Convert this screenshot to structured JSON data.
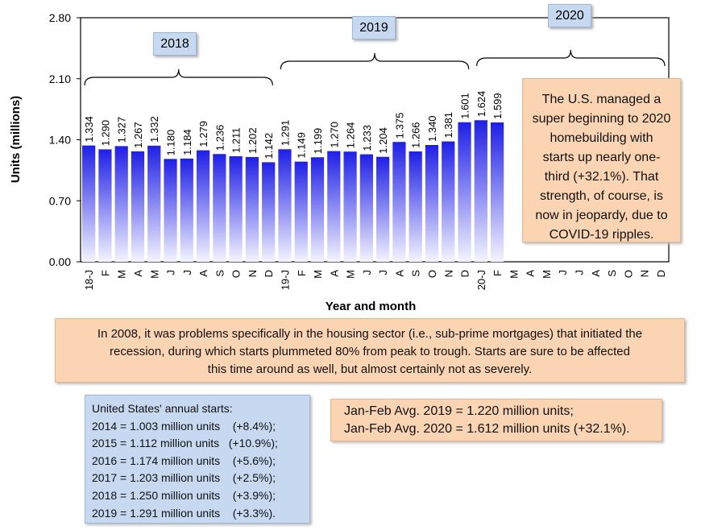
{
  "chart_data": {
    "type": "bar",
    "ylabel": "Units (millions)",
    "xlabel": "Year and month",
    "categories": [
      "18-J",
      "F",
      "M",
      "A",
      "M",
      "J",
      "J",
      "A",
      "S",
      "O",
      "N",
      "D",
      "19-J",
      "F",
      "M",
      "A",
      "M",
      "J",
      "J",
      "A",
      "S",
      "O",
      "N",
      "D",
      "20-J",
      "F",
      "M",
      "A",
      "M",
      "J",
      "J",
      "A",
      "S",
      "O",
      "N",
      "D"
    ],
    "values": [
      1.334,
      1.29,
      1.327,
      1.267,
      1.332,
      1.18,
      1.184,
      1.279,
      1.236,
      1.211,
      1.202,
      1.142,
      1.291,
      1.149,
      1.199,
      1.27,
      1.264,
      1.233,
      1.204,
      1.375,
      1.266,
      1.34,
      1.381,
      1.601,
      1.624,
      1.599,
      null,
      null,
      null,
      null,
      null,
      null,
      null,
      null,
      null,
      null
    ],
    "value_labels": [
      "1.334",
      "1.290",
      "1.327",
      "1.267",
      "1.332",
      "1.180",
      "1.184",
      "1.279",
      "1.236",
      "1.211",
      "1.202",
      "1.142",
      "1.291",
      "1.149",
      "1.199",
      "1.270",
      "1.264",
      "1.233",
      "1.204",
      "1.375",
      "1.266",
      "1.340",
      "1.381",
      "1.601",
      "1.624",
      "1.599",
      null,
      null,
      null,
      null,
      null,
      null,
      null,
      null,
      null,
      null
    ],
    "color": "#1f1fe6",
    "ylim": [
      0,
      2.8
    ],
    "yticks": [
      {
        "value": 0,
        "label": "0.00"
      },
      {
        "value": 0.7,
        "label": "0.70"
      },
      {
        "value": 1.4,
        "label": "1.40"
      },
      {
        "value": 2.1,
        "label": "2.10"
      },
      {
        "value": 2.8,
        "label": "2.80"
      }
    ],
    "year_labels": [
      "2018",
      "2019",
      "2020"
    ],
    "notes": {
      "right": [
        "The U.S. managed a",
        "super beginning to 2020",
        "homebuilding with",
        "starts up nearly one-",
        "third (+32.1%). That",
        "strength, of course, is",
        "now in jeopardy, due to",
        "COVID-19 ripples."
      ],
      "middle": [
        "In 2008, it was problems specifically in the housing sector (i.e., sub-prime mortgages) that initiated the",
        "recession, during which starts plummeted 80% from peak to trough. Starts are sure to be affected",
        "this time around as well, but almost certainly not as severely."
      ],
      "annual": [
        "United States' annual starts:",
        "2014 = 1.003 million units    (+8.4%);",
        "2015 = 1.112 million units   (+10.9%);",
        "2016 = 1.174 million units    (+5.6%);",
        "2017 = 1.203 million units    (+2.5%);",
        "2018 = 1.250 million units    (+3.9%);",
        "2019 = 1.291 million units    (+3.3%)."
      ],
      "avg": [
        "Jan-Feb Avg. 2019 = 1.220 million units;",
        "Jan-Feb Avg. 2020 = 1.612 million units (+32.1%)."
      ]
    }
  }
}
